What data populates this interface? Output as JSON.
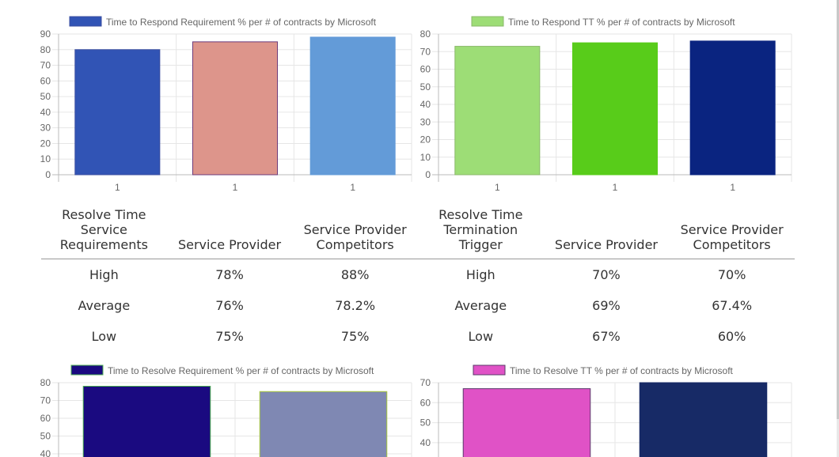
{
  "chart_data": [
    {
      "type": "bar",
      "legend": "Time to Respond Requirement % per # of contracts by Microsoft",
      "categories": [
        "1",
        "1",
        "1"
      ],
      "values": [
        80,
        85,
        88
      ],
      "colors": [
        "#3154b5",
        "#dd958b",
        "#639bd8"
      ],
      "borders": [
        "#3a4ea0",
        "#6b3a7a",
        "#639bd8"
      ],
      "ylim": [
        0,
        90
      ],
      "yticks": [
        0,
        10,
        20,
        30,
        40,
        50,
        60,
        70,
        80,
        90
      ],
      "grid": true,
      "legend_position": "top"
    },
    {
      "type": "bar",
      "legend": "Time to Respond TT % per # of contracts by Microsoft",
      "categories": [
        "1",
        "1",
        "1"
      ],
      "values": [
        73,
        75,
        76
      ],
      "colors": [
        "#9ddd76",
        "#58cc1a",
        "#0a2480"
      ],
      "borders": [
        "#8ab86a",
        "#58cc1a",
        "#0a2480"
      ],
      "ylim": [
        0,
        80
      ],
      "yticks": [
        0,
        10,
        20,
        30,
        40,
        50,
        60,
        70,
        80
      ],
      "grid": true,
      "legend_position": "top"
    },
    {
      "type": "bar",
      "legend": "Time to Resolve Requirement % per # of contracts by Microsoft",
      "categories": [
        "",
        ""
      ],
      "values": [
        78,
        75
      ],
      "colors": [
        "#1a0a80",
        "#7f88b3"
      ],
      "borders": [
        "#4caf50",
        "#a8c83a"
      ],
      "ylim": [
        0,
        80
      ],
      "yticks": [
        40,
        50,
        60,
        70,
        80
      ],
      "grid": true,
      "legend_position": "top"
    },
    {
      "type": "bar",
      "legend": "Time to Resolve TT % per # of contracts by Microsoft",
      "categories": [
        "",
        ""
      ],
      "values": [
        67,
        70
      ],
      "colors": [
        "#e052c6",
        "#172a66"
      ],
      "borders": [
        "#5a3a6a",
        "#172a66"
      ],
      "ylim": [
        0,
        70
      ],
      "yticks": [
        40,
        50,
        60,
        70
      ],
      "grid": true,
      "legend_position": "top"
    }
  ],
  "table": {
    "left_headers": [
      "Resolve Time Service Requirements",
      "Service Provider",
      "Service Provider Competitors"
    ],
    "right_headers": [
      "Resolve Time Termination Trigger",
      "Service Provider",
      "Service Provider Competitors"
    ],
    "rows": [
      {
        "label_left": "High",
        "sp_left": "78%",
        "comp_left": "88%",
        "label_right": "High",
        "sp_right": "70%",
        "comp_right": "70%"
      },
      {
        "label_left": "Average",
        "sp_left": "76%",
        "comp_left": "78.2%",
        "label_right": "Average",
        "sp_right": "69%",
        "comp_right": "67.4%"
      },
      {
        "label_left": "Low",
        "sp_left": "75%",
        "comp_left": "75%",
        "label_right": "Low",
        "sp_right": "67%",
        "comp_right": "60%"
      }
    ]
  }
}
